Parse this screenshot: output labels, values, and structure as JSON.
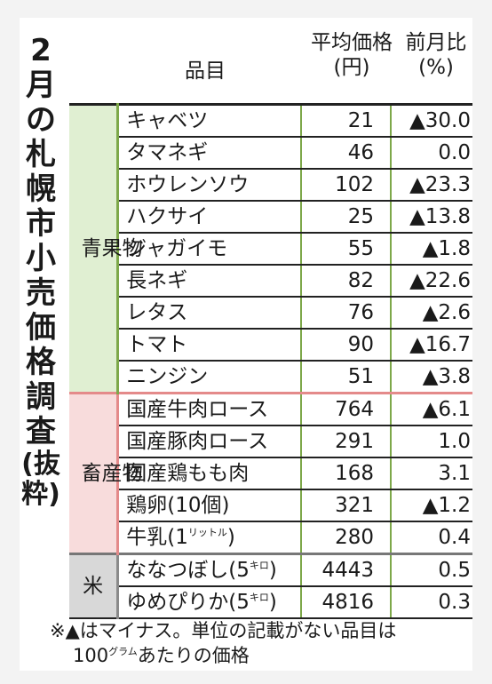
{
  "title": {
    "main": "2月の札幌市小売価格調査",
    "sub": "(抜粋)"
  },
  "header": {
    "item": "品目",
    "price_line1": "平均価格",
    "price_line2": "(円)",
    "change_line1": "前月比",
    "change_line2": "(%)"
  },
  "groups": [
    {
      "category": "青果物",
      "color": "#e0efd2",
      "rows": [
        {
          "name": "キャベツ",
          "price": "21",
          "change": "▲30.0"
        },
        {
          "name": "タマネギ",
          "price": "46",
          "change": "0.0"
        },
        {
          "name": "ホウレンソウ",
          "price": "102",
          "change": "▲23.3"
        },
        {
          "name": "ハクサイ",
          "price": "25",
          "change": "▲13.8"
        },
        {
          "name": "ジャガイモ",
          "price": "55",
          "change": "▲1.8"
        },
        {
          "name": "長ネギ",
          "price": "82",
          "change": "▲22.6"
        },
        {
          "name": "レタス",
          "price": "76",
          "change": "▲2.6"
        },
        {
          "name": "トマト",
          "price": "90",
          "change": "▲16.7"
        },
        {
          "name": "ニンジン",
          "price": "51",
          "change": "▲3.8"
        }
      ]
    },
    {
      "category": "畜産物",
      "color": "#f8dcdc",
      "rows": [
        {
          "name": "国産牛肉ロース",
          "price": "764",
          "change": "▲6.1"
        },
        {
          "name": "国産豚肉ロース",
          "price": "291",
          "change": "1.0"
        },
        {
          "name": "国産鶏もも肉",
          "price": "168",
          "change": "3.1"
        },
        {
          "name": "鶏卵(10個)",
          "price": "321",
          "change": "▲1.2"
        },
        {
          "name": "牛乳(1",
          "name_unit": "リットル",
          "name_close": ")",
          "price": "280",
          "change": "0.4"
        }
      ]
    },
    {
      "category": "米",
      "color": "#d8d8d8",
      "rows": [
        {
          "name": "ななつぼし(5",
          "name_unit": "キロ",
          "name_close": ")",
          "price": "4443",
          "change": "0.5"
        },
        {
          "name": "ゆめぴりか(5",
          "name_unit": "キロ",
          "name_close": ")",
          "price": "4816",
          "change": "0.3"
        }
      ]
    }
  ],
  "note": {
    "line1": "※▲はマイナス。単位の記載がない品目は",
    "line2_a": "100",
    "line2_unit": "グラム",
    "line2_b": "あたりの価格"
  }
}
